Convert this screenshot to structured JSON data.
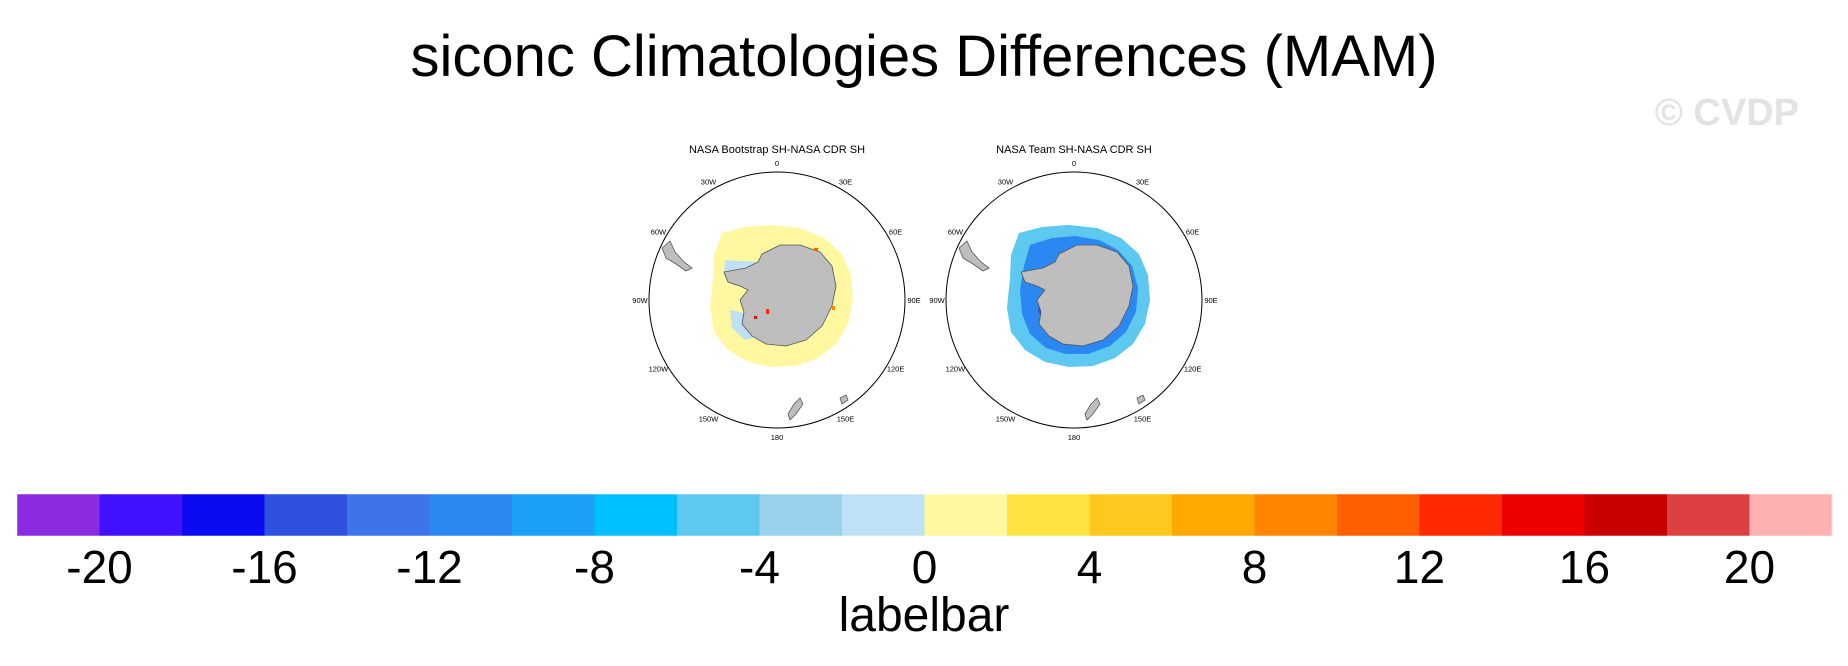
{
  "title": "siconc Climatologies Differences (MAM)",
  "watermark": "© CVDP",
  "colors": {
    "land": "#bebebe",
    "coast": "#555555",
    "labelbar": [
      "#8a2be2",
      "#4211ff",
      "#0b0bf2",
      "#3050e0",
      "#3d74e8",
      "#2b88f2",
      "#1aa0f5",
      "#00bfff",
      "#5dc8f0",
      "#9ad2ee",
      "#bee1f5",
      "#fff8a0",
      "#ffe340",
      "#ffc81e",
      "#ffa800",
      "#ff8500",
      "#ff5f00",
      "#ff2a00",
      "#ee0000",
      "#c80000",
      "#dc4040",
      "#ffb0b0"
    ]
  },
  "chart_data": {
    "type": "map",
    "projection": "south polar stereographic",
    "variable": "siconc",
    "season": "MAM",
    "panels": [
      {
        "title": "NASA Bootstrap SH-NASA CDR SH",
        "lon_labels": [
          "0",
          "30E",
          "60E",
          "90E",
          "120E",
          "150E",
          "180",
          "150W",
          "120W",
          "90W",
          "60W",
          "30W"
        ],
        "dominant_difference": "0 to 2 (pale yellow ring), small positive/negative patches near coast"
      },
      {
        "title": "NASA Team SH-NASA CDR SH",
        "lon_labels": [
          "0",
          "30E",
          "60E",
          "90E",
          "120E",
          "150E",
          "180",
          "150W",
          "120W",
          "90W",
          "60W",
          "30W"
        ],
        "dominant_difference": "-14 to -4 (blue ring)"
      }
    ],
    "labelbar": {
      "title": "labelbar",
      "levels": [
        -20,
        -18,
        -16,
        -14,
        -12,
        -10,
        -8,
        -6,
        -4,
        -2,
        0,
        2,
        4,
        6,
        8,
        10,
        12,
        14,
        16,
        18,
        20
      ],
      "tick_labels": [
        "-20",
        "-16",
        "-12",
        "-8",
        "-4",
        "0",
        "4",
        "8",
        "12",
        "16",
        "20"
      ]
    }
  }
}
